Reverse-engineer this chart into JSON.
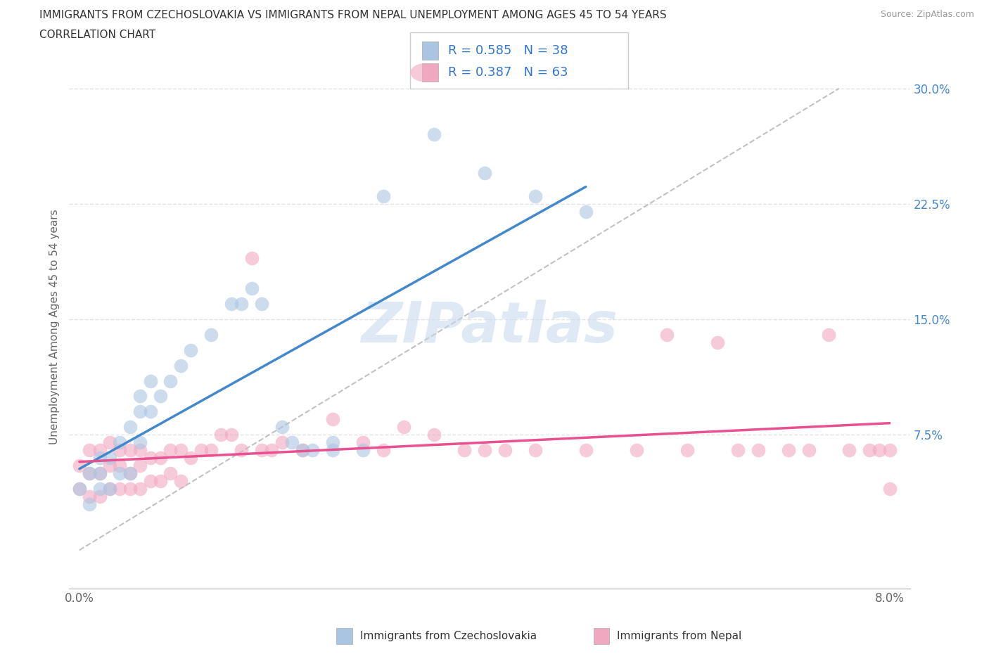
{
  "title_line1": "IMMIGRANTS FROM CZECHOSLOVAKIA VS IMMIGRANTS FROM NEPAL UNEMPLOYMENT AMONG AGES 45 TO 54 YEARS",
  "title_line2": "CORRELATION CHART",
  "source_text": "Source: ZipAtlas.com",
  "ylabel": "Unemployment Among Ages 45 to 54 years",
  "xlim": [
    0.0,
    0.08
  ],
  "ylim": [
    0.0,
    0.3
  ],
  "legend_r1": "0.585",
  "legend_n1": "38",
  "legend_r2": "0.387",
  "legend_n2": "63",
  "color_czech": "#aac5e2",
  "color_czech_edge": "#88aacc",
  "color_nepal": "#f0a8c0",
  "color_nepal_edge": "#d080a0",
  "color_czech_line": "#4488cc",
  "color_nepal_line": "#e85090",
  "color_diag": "#bbbbbb",
  "color_grid": "#dddddd",
  "color_ytick": "#4488cc",
  "color_xtick": "#666666",
  "color_ylabel": "#666666",
  "color_title": "#333333",
  "color_source": "#999999",
  "color_watermark": "#ccddeeff",
  "czech_x": [
    0.0,
    0.001,
    0.001,
    0.002,
    0.002,
    0.002,
    0.003,
    0.003,
    0.004,
    0.004,
    0.005,
    0.005,
    0.006,
    0.006,
    0.006,
    0.007,
    0.007,
    0.008,
    0.009,
    0.01,
    0.011,
    0.013,
    0.015,
    0.016,
    0.017,
    0.018,
    0.02,
    0.021,
    0.022,
    0.023,
    0.025,
    0.025,
    0.028,
    0.03,
    0.035,
    0.04,
    0.045,
    0.05
  ],
  "czech_y": [
    0.04,
    0.03,
    0.05,
    0.04,
    0.05,
    0.06,
    0.04,
    0.06,
    0.05,
    0.07,
    0.05,
    0.08,
    0.07,
    0.09,
    0.1,
    0.09,
    0.11,
    0.1,
    0.11,
    0.12,
    0.13,
    0.14,
    0.16,
    0.16,
    0.17,
    0.16,
    0.08,
    0.07,
    0.065,
    0.065,
    0.065,
    0.07,
    0.065,
    0.23,
    0.27,
    0.245,
    0.23,
    0.22
  ],
  "nepal_x": [
    0.0,
    0.0,
    0.001,
    0.001,
    0.001,
    0.002,
    0.002,
    0.002,
    0.003,
    0.003,
    0.003,
    0.004,
    0.004,
    0.004,
    0.005,
    0.005,
    0.005,
    0.006,
    0.006,
    0.006,
    0.007,
    0.007,
    0.008,
    0.008,
    0.009,
    0.009,
    0.01,
    0.01,
    0.011,
    0.012,
    0.013,
    0.014,
    0.015,
    0.016,
    0.017,
    0.018,
    0.019,
    0.02,
    0.022,
    0.025,
    0.028,
    0.03,
    0.032,
    0.035,
    0.038,
    0.04,
    0.042,
    0.045,
    0.05,
    0.055,
    0.058,
    0.06,
    0.063,
    0.065,
    0.067,
    0.07,
    0.072,
    0.074,
    0.076,
    0.078,
    0.079,
    0.08,
    0.08
  ],
  "nepal_y": [
    0.04,
    0.055,
    0.035,
    0.05,
    0.065,
    0.035,
    0.05,
    0.065,
    0.04,
    0.055,
    0.07,
    0.04,
    0.055,
    0.065,
    0.04,
    0.05,
    0.065,
    0.04,
    0.055,
    0.065,
    0.045,
    0.06,
    0.045,
    0.06,
    0.05,
    0.065,
    0.045,
    0.065,
    0.06,
    0.065,
    0.065,
    0.075,
    0.075,
    0.065,
    0.19,
    0.065,
    0.065,
    0.07,
    0.065,
    0.085,
    0.07,
    0.065,
    0.08,
    0.075,
    0.065,
    0.065,
    0.065,
    0.065,
    0.065,
    0.065,
    0.14,
    0.065,
    0.135,
    0.065,
    0.065,
    0.065,
    0.065,
    0.14,
    0.065,
    0.065,
    0.065,
    0.04,
    0.065
  ]
}
